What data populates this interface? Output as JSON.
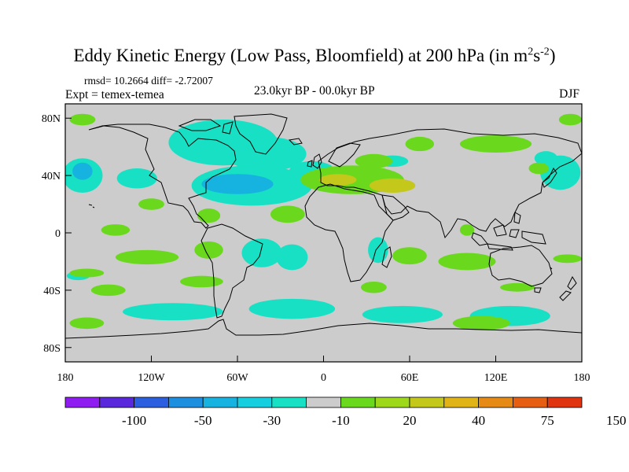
{
  "title_main": "Eddy Kinetic Energy (Low Pass, Bloomfield) at 200 hPa (in m",
  "title_sup1": "2",
  "title_mid": "s",
  "title_sup2": "-2",
  "title_end": ")",
  "stats": "rmsd= 10.2664 diff= -2.72007",
  "expt": "Expt = temex-temea",
  "center_subtitle": "23.0kyr BP - 00.0kyr BP",
  "season": "DJF",
  "chart_data": {
    "type": "heatmap",
    "projection": "cylindrical-equidistant",
    "x_ticks": [
      "180",
      "120W",
      "60W",
      "0",
      "60E",
      "120E",
      "180"
    ],
    "y_ticks": [
      "80N",
      "40N",
      "0",
      "40S",
      "80S"
    ],
    "x_range": [
      -180,
      180
    ],
    "y_range": [
      -90,
      90
    ],
    "colorbar": {
      "colors": [
        "#8f1cf0",
        "#5a28dc",
        "#2c5fe0",
        "#1d8fe0",
        "#17b3e0",
        "#15cfe0",
        "#18e0c4",
        "#cccccc",
        "#6ad81c",
        "#9ed81a",
        "#c4c81a",
        "#e0b417",
        "#e68a16",
        "#e65e12",
        "#e03410"
      ],
      "labels": [
        "-100",
        "-50",
        "-30",
        "-10",
        "20",
        "40",
        "75",
        "150"
      ]
    },
    "regions": [
      {
        "cls": "cyan",
        "lon": -168,
        "lat": 40,
        "rx": 14,
        "ry": 12
      },
      {
        "cls": "blue",
        "lon": -168,
        "lat": 43,
        "rx": 7,
        "ry": 6
      },
      {
        "cls": "cyan",
        "lon": -130,
        "lat": 38,
        "rx": 14,
        "ry": 7
      },
      {
        "cls": "cyan",
        "lon": -70,
        "lat": 63,
        "rx": 38,
        "ry": 16
      },
      {
        "cls": "cyan",
        "lon": -40,
        "lat": 55,
        "rx": 28,
        "ry": 12
      },
      {
        "cls": "cyan",
        "lon": -50,
        "lat": 33,
        "rx": 42,
        "ry": 14
      },
      {
        "cls": "blue",
        "lon": -60,
        "lat": 34,
        "rx": 25,
        "ry": 7
      },
      {
        "cls": "cyan",
        "lon": -8,
        "lat": 43,
        "rx": 16,
        "ry": 7
      },
      {
        "cls": "cyan",
        "lon": -13,
        "lat": 40,
        "rx": 8,
        "ry": 5
      },
      {
        "cls": "cyan",
        "lon": -43,
        "lat": -14,
        "rx": 14,
        "ry": 10
      },
      {
        "cls": "cyan",
        "lon": -22,
        "lat": -17,
        "rx": 11,
        "ry": 9
      },
      {
        "cls": "cyan",
        "lon": 38,
        "lat": -12,
        "rx": 7,
        "ry": 9
      },
      {
        "cls": "cyan",
        "lon": -105,
        "lat": -55,
        "rx": 35,
        "ry": 6
      },
      {
        "cls": "cyan",
        "lon": -22,
        "lat": -53,
        "rx": 30,
        "ry": 7
      },
      {
        "cls": "cyan",
        "lon": 55,
        "lat": -57,
        "rx": 28,
        "ry": 6
      },
      {
        "cls": "cyan",
        "lon": 130,
        "lat": -58,
        "rx": 28,
        "ry": 7
      },
      {
        "cls": "cyan",
        "lon": 165,
        "lat": 42,
        "rx": 14,
        "ry": 12
      },
      {
        "cls": "cyan",
        "lon": 155,
        "lat": 52,
        "rx": 8,
        "ry": 5
      },
      {
        "cls": "cyan",
        "lon": 48,
        "lat": 50,
        "rx": 11,
        "ry": 4
      },
      {
        "cls": "cyan",
        "lon": -171,
        "lat": -30,
        "rx": 8,
        "ry": 3
      },
      {
        "cls": "green",
        "lon": -168,
        "lat": 79,
        "rx": 9,
        "ry": 4
      },
      {
        "cls": "green",
        "lon": 172,
        "lat": 79,
        "rx": 8,
        "ry": 4
      },
      {
        "cls": "green",
        "lon": 120,
        "lat": 62,
        "rx": 25,
        "ry": 6
      },
      {
        "cls": "green",
        "lon": 67,
        "lat": 62,
        "rx": 10,
        "ry": 5
      },
      {
        "cls": "green",
        "lon": 20,
        "lat": 37,
        "rx": 36,
        "ry": 10
      },
      {
        "cls": "yellow",
        "lon": 10,
        "lat": 37,
        "rx": 13,
        "ry": 4
      },
      {
        "cls": "yellow",
        "lon": 48,
        "lat": 33,
        "rx": 16,
        "ry": 5
      },
      {
        "cls": "green",
        "lon": 35,
        "lat": 50,
        "rx": 13,
        "ry": 5
      },
      {
        "cls": "green",
        "lon": -25,
        "lat": 13,
        "rx": 12,
        "ry": 6
      },
      {
        "cls": "green",
        "lon": -145,
        "lat": 2,
        "rx": 10,
        "ry": 4
      },
      {
        "cls": "green",
        "lon": -120,
        "lat": 20,
        "rx": 9,
        "ry": 4
      },
      {
        "cls": "green",
        "lon": -80,
        "lat": 12,
        "rx": 8,
        "ry": 5
      },
      {
        "cls": "green",
        "lon": -123,
        "lat": -17,
        "rx": 22,
        "ry": 5
      },
      {
        "cls": "green",
        "lon": -80,
        "lat": -12,
        "rx": 10,
        "ry": 6
      },
      {
        "cls": "green",
        "lon": -165,
        "lat": -28,
        "rx": 12,
        "ry": 3
      },
      {
        "cls": "green",
        "lon": -150,
        "lat": -40,
        "rx": 12,
        "ry": 4
      },
      {
        "cls": "green",
        "lon": -85,
        "lat": -34,
        "rx": 15,
        "ry": 4
      },
      {
        "cls": "green",
        "lon": 35,
        "lat": -38,
        "rx": 9,
        "ry": 4
      },
      {
        "cls": "green",
        "lon": 60,
        "lat": -16,
        "rx": 12,
        "ry": 6
      },
      {
        "cls": "green",
        "lon": 100,
        "lat": -20,
        "rx": 20,
        "ry": 6
      },
      {
        "cls": "green",
        "lon": 100,
        "lat": 2,
        "rx": 5,
        "ry": 4
      },
      {
        "cls": "green",
        "lon": 135,
        "lat": -38,
        "rx": 12,
        "ry": 3
      },
      {
        "cls": "green",
        "lon": 170,
        "lat": -18,
        "rx": 10,
        "ry": 3
      },
      {
        "cls": "green",
        "lon": -165,
        "lat": -63,
        "rx": 12,
        "ry": 4
      },
      {
        "cls": "green",
        "lon": 110,
        "lat": -63,
        "rx": 20,
        "ry": 5
      },
      {
        "cls": "green",
        "lon": 150,
        "lat": 45,
        "rx": 7,
        "ry": 4
      }
    ]
  }
}
